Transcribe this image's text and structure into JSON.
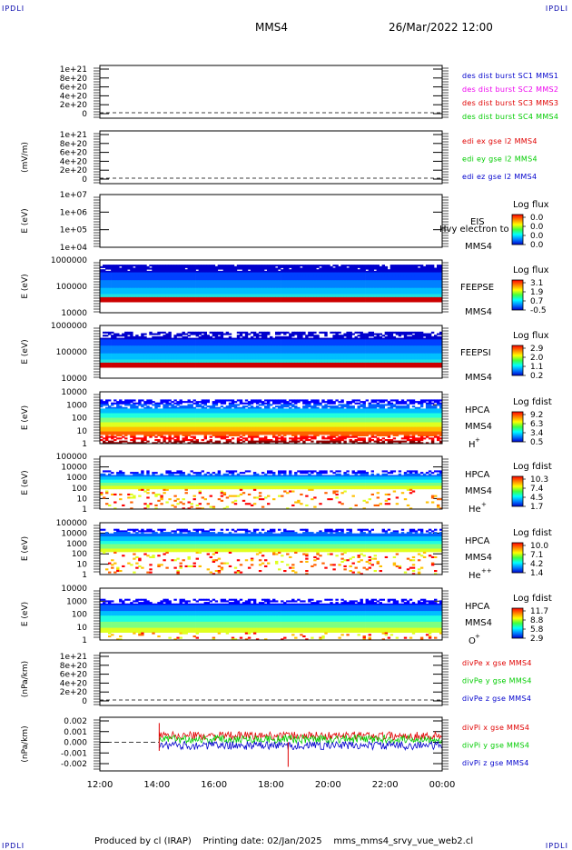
{
  "corner_label": "IPDLI",
  "header": {
    "spacecraft": "MMS4",
    "datetime": "26/Mar/2022 12:00"
  },
  "footer": {
    "produced_by": "Produced by cl (IRAP)",
    "printing_date": "Printing date: 02/Jan/2025",
    "file": "mms_mms4_srvy_vue_web2.cl"
  },
  "colors": {
    "red": "#e00000",
    "green": "#00cc00",
    "blue": "#0000cc",
    "magenta": "#ee00ee"
  },
  "chart_data": [
    {
      "type": "line",
      "name": "particle-dist",
      "ylabel": "",
      "yticks": [
        "1e+21",
        "8e+20",
        "6e+20",
        "4e+20",
        "2e+20",
        "0"
      ],
      "series": [
        {
          "name": "des dist burst SC1 MMS1",
          "color": "#0000cc"
        },
        {
          "name": "des dist burst SC2 MMS2",
          "color": "#ee00ee"
        },
        {
          "name": "des dist burst SC3 MMS3",
          "color": "#e00000"
        },
        {
          "name": "des dist burst SC4 MMS4",
          "color": "#00cc00"
        }
      ]
    },
    {
      "type": "line",
      "name": "edi-field",
      "ylabel": "(mV/m)",
      "yticks": [
        "1e+21",
        "8e+20",
        "6e+20",
        "4e+20",
        "2e+20",
        "0"
      ],
      "series": [
        {
          "name": "edi ex gse l2 MMS4",
          "color": "#e00000"
        },
        {
          "name": "edi ey gse l2 MMS4",
          "color": "#00cc00"
        },
        {
          "name": "edi ez gse l2 MMS4",
          "color": "#0000cc"
        }
      ]
    },
    {
      "type": "heatmap",
      "name": "eis",
      "ylabel": "E (eV)",
      "yticks": [
        "1e+07",
        "1e+06",
        "1e+05",
        "1e+04"
      ],
      "instrument": "EIS",
      "overlay": "Hvy electron to",
      "sc": "MMS4",
      "cbar_title": "Log flux",
      "cbar_ticks": [
        "0.0",
        "0.0",
        "0.0",
        "0.0"
      ]
    },
    {
      "type": "heatmap",
      "name": "feeps-e",
      "ylabel": "E (eV)",
      "yticks": [
        "1000000",
        "100000",
        "10000"
      ],
      "instrument": "FEEPSE",
      "sc": "MMS4",
      "cbar_title": "Log flux",
      "cbar_ticks": [
        "3.1",
        "1.9",
        "0.7",
        "-0.5"
      ]
    },
    {
      "type": "heatmap",
      "name": "feeps-i",
      "ylabel": "E (eV)",
      "yticks": [
        "1000000",
        "100000",
        "10000"
      ],
      "instrument": "FEEPSI",
      "sc": "MMS4",
      "cbar_title": "Log flux",
      "cbar_ticks": [
        "2.9",
        "2.0",
        "1.1",
        "0.2"
      ]
    },
    {
      "type": "heatmap",
      "name": "hpca-h",
      "ylabel": "E (eV)",
      "yticks": [
        "10000",
        "1000",
        "100",
        "10",
        "1"
      ],
      "instrument": "HPCA",
      "sc": "MMS4",
      "species": "H",
      "charge": "+",
      "cbar_title": "Log fdist",
      "cbar_ticks": [
        "9.2",
        "6.3",
        "3.4",
        "0.5"
      ]
    },
    {
      "type": "heatmap",
      "name": "hpca-he",
      "ylabel": "E (eV)",
      "yticks": [
        "100000",
        "10000",
        "1000",
        "100",
        "10",
        "1"
      ],
      "instrument": "HPCA",
      "sc": "MMS4",
      "species": "He",
      "charge": "+",
      "cbar_title": "Log fdist",
      "cbar_ticks": [
        "10.3",
        "7.4",
        "4.5",
        "1.7"
      ]
    },
    {
      "type": "heatmap",
      "name": "hpca-he2",
      "ylabel": "E (eV)",
      "yticks": [
        "100000",
        "10000",
        "1000",
        "100",
        "10",
        "1"
      ],
      "instrument": "HPCA",
      "sc": "MMS4",
      "species": "He",
      "charge": "++",
      "cbar_title": "Log fdist",
      "cbar_ticks": [
        "10.0",
        "7.1",
        "4.2",
        "1.4"
      ]
    },
    {
      "type": "heatmap",
      "name": "hpca-o",
      "ylabel": "E (eV)",
      "yticks": [
        "10000",
        "1000",
        "100",
        "10",
        "1"
      ],
      "instrument": "HPCA",
      "sc": "MMS4",
      "species": "O",
      "charge": "+",
      "cbar_title": "Log fdist",
      "cbar_ticks": [
        "11.7",
        "8.8",
        "5.8",
        "2.9"
      ]
    },
    {
      "type": "line",
      "name": "divpe",
      "ylabel": "(nPa/km)",
      "yticks": [
        "1e+21",
        "8e+20",
        "6e+20",
        "4e+20",
        "2e+20",
        "0"
      ],
      "series": [
        {
          "name": "divPe x gse MMS4",
          "color": "#e00000"
        },
        {
          "name": "divPe y gse MMS4",
          "color": "#00cc00"
        },
        {
          "name": "divPe z gse MMS4",
          "color": "#0000cc"
        }
      ]
    },
    {
      "type": "line",
      "name": "divpi",
      "ylabel": "(nPa/km)",
      "yticks": [
        "0.002",
        "0.001",
        "0.000",
        "-0.001",
        "-0.002"
      ],
      "ylim": [
        -0.0025,
        0.0025
      ],
      "data_start": "14:05",
      "series": [
        {
          "name": "divPi x gse MMS4",
          "color": "#e00000"
        },
        {
          "name": "divPi y gse MMS4",
          "color": "#00cc00"
        },
        {
          "name": "divPi z gse MMS4",
          "color": "#0000cc"
        }
      ]
    }
  ],
  "xaxis": {
    "ticks": [
      "12:00",
      "14:00",
      "16:00",
      "18:00",
      "20:00",
      "22:00",
      "00:00"
    ]
  }
}
